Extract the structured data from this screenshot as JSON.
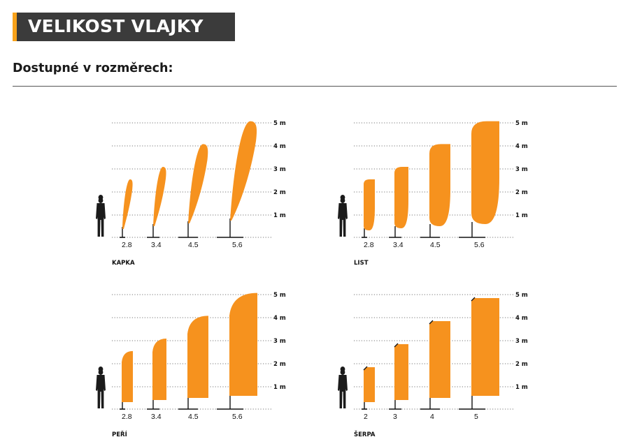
{
  "header": {
    "title": "VELIKOST VLAJKY",
    "subtitle": "Dostupné v rozměrech:"
  },
  "colors": {
    "flag": "#f6921e",
    "title_bar": "#3b3b3b",
    "title_accent": "#f7a21b"
  },
  "scale": {
    "max_m": 5,
    "labels": [
      "5 m",
      "4 m",
      "3 m",
      "2 m",
      "1 m"
    ]
  },
  "panels": [
    {
      "name": "KAPKA",
      "shape": "drop",
      "flags": [
        {
          "size": "2.8",
          "height": 2.8
        },
        {
          "size": "3.4",
          "height": 3.4
        },
        {
          "size": "4.5",
          "height": 4.5
        },
        {
          "size": "5.6",
          "height": 5.6
        }
      ]
    },
    {
      "name": "LIST",
      "shape": "leaf",
      "flags": [
        {
          "size": "2.8",
          "height": 2.8
        },
        {
          "size": "3.4",
          "height": 3.4
        },
        {
          "size": "4.5",
          "height": 4.5
        },
        {
          "size": "5.6",
          "height": 5.6
        }
      ]
    },
    {
      "name": "PEŘÍ",
      "shape": "feather",
      "flags": [
        {
          "size": "2.8",
          "height": 2.8
        },
        {
          "size": "3.4",
          "height": 3.4
        },
        {
          "size": "4.5",
          "height": 4.5
        },
        {
          "size": "5.6",
          "height": 5.6
        }
      ]
    },
    {
      "name": "ŠERPA",
      "shape": "sash",
      "flags": [
        {
          "size": "2",
          "height": 2
        },
        {
          "size": "3",
          "height": 3
        },
        {
          "size": "4",
          "height": 4
        },
        {
          "size": "5",
          "height": 5
        }
      ]
    }
  ]
}
